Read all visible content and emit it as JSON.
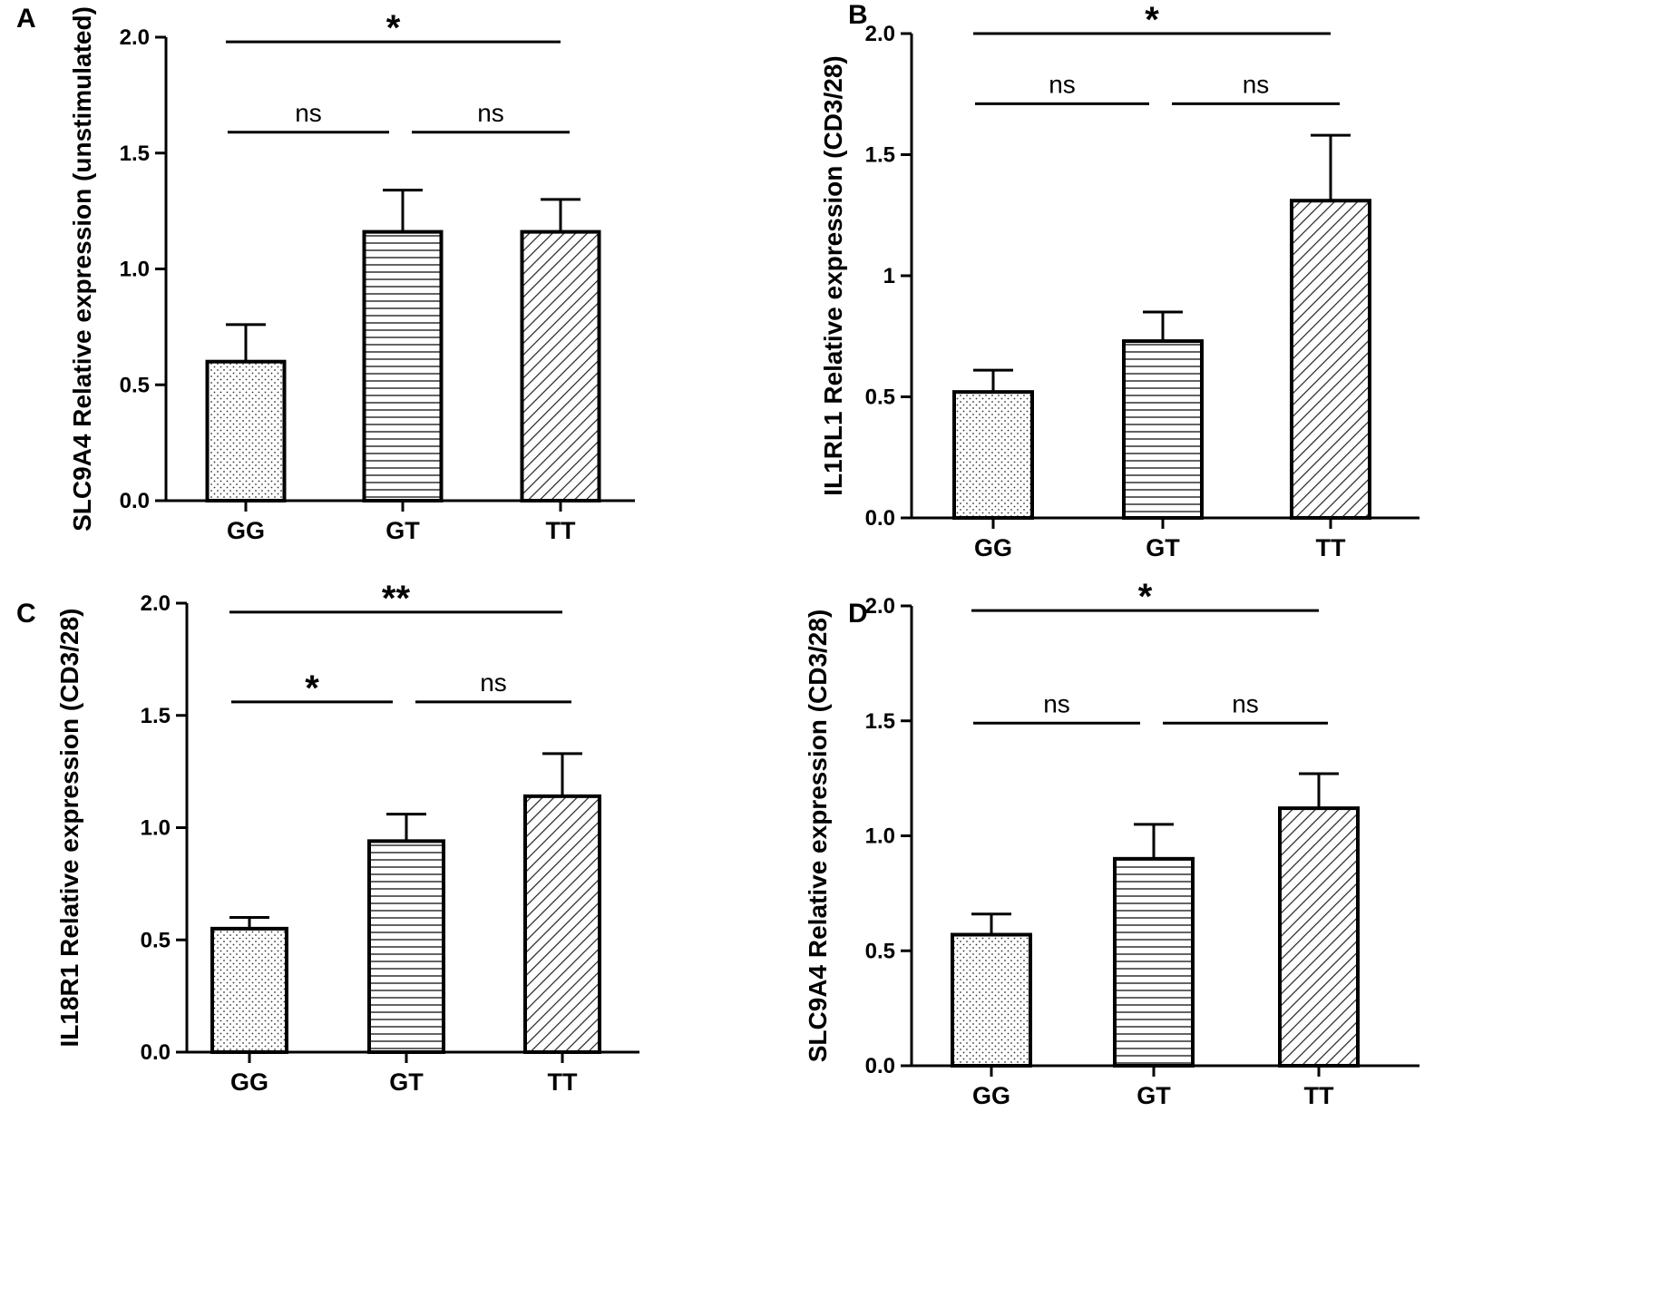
{
  "chart_data": [
    {
      "panel": "A",
      "type": "bar",
      "ylabel": "SLC9A4 Relative expression (unstimulated)",
      "categories": [
        "GG",
        "GT",
        "TT"
      ],
      "values": [
        0.6,
        1.16,
        1.16
      ],
      "errors": [
        0.16,
        0.18,
        0.14
      ],
      "patterns": [
        "dots",
        "hlines",
        "diag"
      ],
      "ylim": [
        0,
        2.0
      ],
      "yticks": [
        {
          "v": 0,
          "t": "0.0"
        },
        {
          "v": 0.5,
          "t": "0.5"
        },
        {
          "v": 1.0,
          "t": "1.0"
        },
        {
          "v": 1.5,
          "t": "1.5"
        },
        {
          "v": 2.0,
          "t": "2.0"
        }
      ],
      "brackets": [
        {
          "from": 0,
          "to": 1,
          "level": 1.59,
          "text": "ns"
        },
        {
          "from": 1,
          "to": 2,
          "level": 1.59,
          "text": "ns"
        },
        {
          "from": 0,
          "to": 2,
          "level": 1.98,
          "text": "*"
        }
      ]
    },
    {
      "panel": "B",
      "type": "bar",
      "ylabel": "IL1RL1 Relative expression (CD3/28)",
      "categories": [
        "GG",
        "GT",
        "TT"
      ],
      "values": [
        0.52,
        0.73,
        1.31
      ],
      "errors": [
        0.09,
        0.12,
        0.27
      ],
      "patterns": [
        "dots",
        "hlines",
        "diag"
      ],
      "ylim": [
        0,
        2.0
      ],
      "yticks": [
        {
          "v": 0,
          "t": "0.0"
        },
        {
          "v": 0.5,
          "t": "0.5"
        },
        {
          "v": 1.0,
          "t": "1"
        },
        {
          "v": 1.5,
          "t": "1.5"
        },
        {
          "v": 2.0,
          "t": "2.0"
        }
      ],
      "brackets": [
        {
          "from": 0,
          "to": 1,
          "level": 1.71,
          "text": "ns"
        },
        {
          "from": 1,
          "to": 2,
          "level": 1.71,
          "text": "ns"
        },
        {
          "from": 0,
          "to": 2,
          "level": 2.0,
          "text": "*"
        }
      ]
    },
    {
      "panel": "C",
      "type": "bar",
      "ylabel": "IL18R1 Relative expression (CD3/28)",
      "categories": [
        "GG",
        "GT",
        "TT"
      ],
      "values": [
        0.55,
        0.94,
        1.14
      ],
      "errors": [
        0.05,
        0.12,
        0.19
      ],
      "patterns": [
        "dots",
        "hlines",
        "diag"
      ],
      "ylim": [
        0,
        2.0
      ],
      "yticks": [
        {
          "v": 0,
          "t": "0.0"
        },
        {
          "v": 0.5,
          "t": "0.5"
        },
        {
          "v": 1.0,
          "t": "1.0"
        },
        {
          "v": 1.5,
          "t": "1.5"
        },
        {
          "v": 2.0,
          "t": "2.0"
        }
      ],
      "brackets": [
        {
          "from": 0,
          "to": 1,
          "level": 1.56,
          "text": "*"
        },
        {
          "from": 1,
          "to": 2,
          "level": 1.56,
          "text": "ns"
        },
        {
          "from": 0,
          "to": 2,
          "level": 1.96,
          "text": "**"
        }
      ]
    },
    {
      "panel": "D",
      "type": "bar",
      "ylabel": "SLC9A4 Relative expression (CD3/28)",
      "categories": [
        "GG",
        "GT",
        "TT"
      ],
      "values": [
        0.57,
        0.9,
        1.12
      ],
      "errors": [
        0.09,
        0.15,
        0.15
      ],
      "patterns": [
        "dots",
        "hlines",
        "diag"
      ],
      "ylim": [
        0,
        2.0
      ],
      "yticks": [
        {
          "v": 0,
          "t": "0.0"
        },
        {
          "v": 0.5,
          "t": "0.5"
        },
        {
          "v": 1.0,
          "t": "1.0"
        },
        {
          "v": 1.5,
          "t": "1.5"
        },
        {
          "v": 2.0,
          "t": "2.0"
        }
      ],
      "brackets": [
        {
          "from": 0,
          "to": 1,
          "level": 1.49,
          "text": "ns"
        },
        {
          "from": 1,
          "to": 2,
          "level": 1.49,
          "text": "ns"
        },
        {
          "from": 0,
          "to": 2,
          "level": 1.98,
          "text": "*"
        }
      ]
    }
  ]
}
